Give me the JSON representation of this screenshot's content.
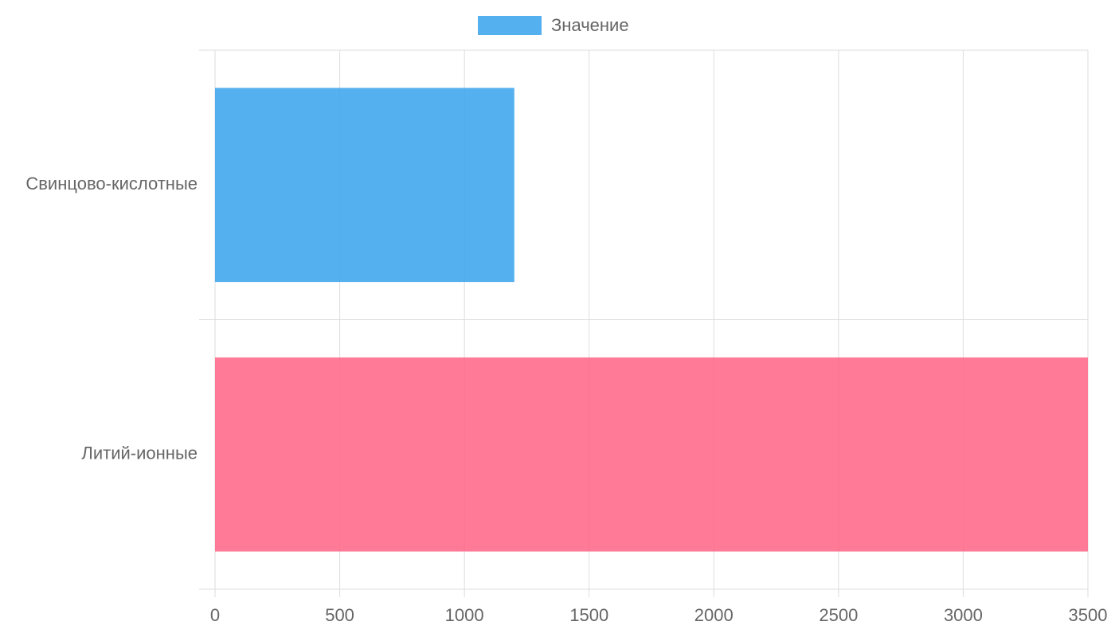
{
  "chart_data": {
    "type": "hbar",
    "categories": [
      "Свинцово-кислотные",
      "Литий-ионные"
    ],
    "series": [
      {
        "name": "Значение",
        "colors": [
          "#36a2eb",
          "#ff6384"
        ],
        "values": [
          1200,
          3500
        ]
      }
    ],
    "xlim": [
      0,
      3500
    ],
    "xticks": [
      0,
      500,
      1000,
      1500,
      2000,
      2500,
      3000,
      3500
    ],
    "grid": true,
    "legend": "top"
  }
}
